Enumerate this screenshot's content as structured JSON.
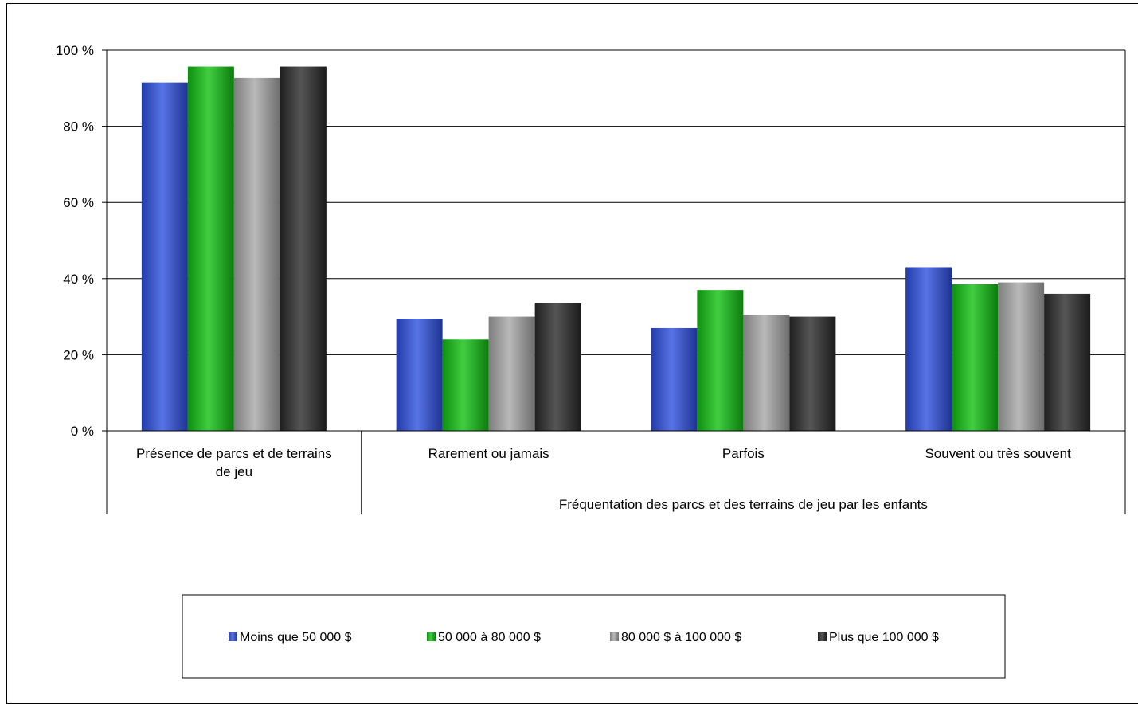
{
  "chart_data": {
    "type": "bar",
    "title": "",
    "ylabel": "",
    "ylim": [
      0,
      100
    ],
    "yticks": [
      "0 %",
      "20 %",
      "40 %",
      "60 %",
      "80 %",
      "100 %"
    ],
    "grid": true,
    "legend_position": "bottom",
    "categories": [
      "Présence de parcs et de terrains de jeu",
      "Rarement ou jamais",
      "Parfois",
      "Souvent ou très souvent"
    ],
    "group_label": "Fréquentation des parcs et des terrains de jeu par les enfants",
    "series": [
      {
        "name": "Moins que 50 000 $",
        "color": "#2e50e0",
        "values": [
          91.5,
          29.5,
          27,
          43
        ]
      },
      {
        "name": "50 000 à 80 000 $",
        "color": "#12c012",
        "values": [
          95.7,
          24,
          37,
          38.5
        ]
      },
      {
        "name": "80 000 $ à 100 000 $",
        "color": "#a8a8a8",
        "values": [
          92.7,
          30,
          30.5,
          39
        ]
      },
      {
        "name": "Plus que 100 000 $",
        "color": "#2a2a2a",
        "values": [
          95.7,
          33.5,
          30,
          36
        ]
      }
    ]
  }
}
